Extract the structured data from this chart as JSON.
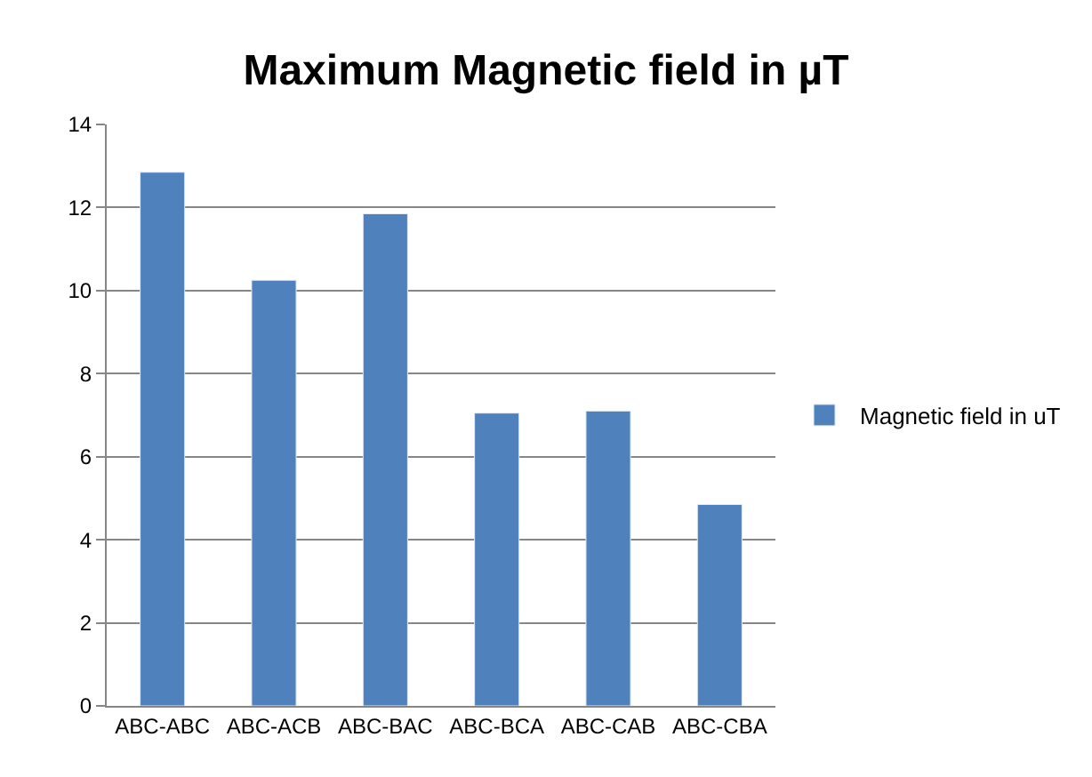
{
  "chart_data": {
    "type": "bar",
    "title": "Maximum Magnetic field in µT",
    "categories": [
      "ABC-ABC",
      "ABC-ACB",
      "ABC-BAC",
      "ABC-BCA",
      "ABC-CAB",
      "ABC-CBA"
    ],
    "series": [
      {
        "name": "Magnetic field in uT",
        "color": "#4f81bd",
        "values": [
          12.85,
          10.25,
          11.85,
          7.05,
          7.1,
          4.85
        ]
      }
    ],
    "ylim": [
      0,
      14
    ],
    "yticks": [
      0,
      2,
      4,
      6,
      8,
      10,
      12,
      14
    ],
    "grid": "y",
    "legend": "right"
  }
}
